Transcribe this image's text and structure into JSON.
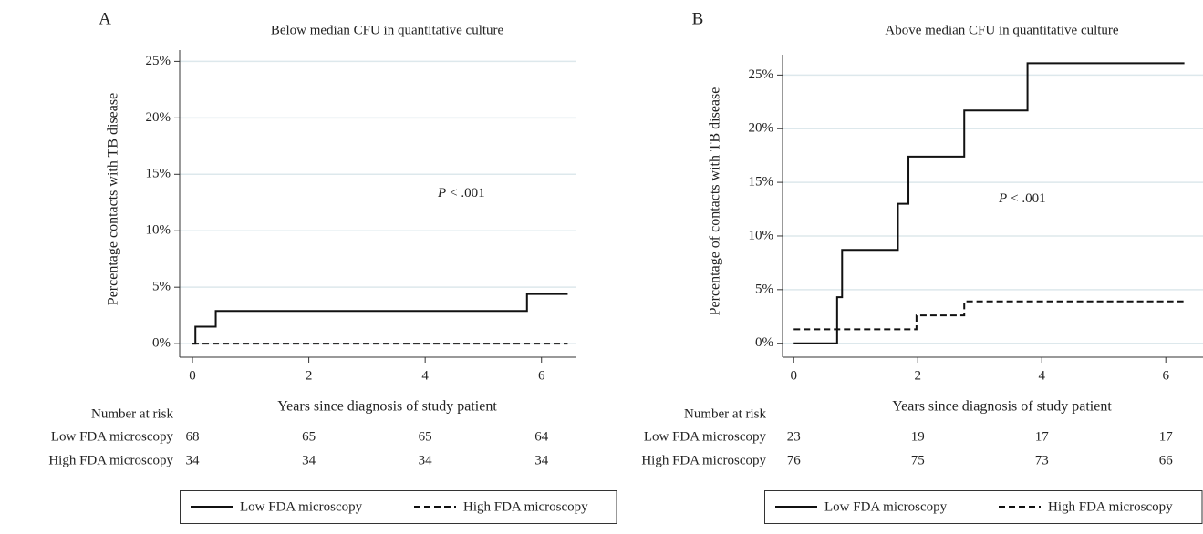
{
  "chart_data": [
    {
      "type": "line",
      "step": "post",
      "panel": "A",
      "title": "Below median CFU in quantitative culture",
      "xlabel": "Years since diagnosis of study patient",
      "ylabel": "Percentage contacts with TB disease",
      "annotation": {
        "italic": "P",
        "text": "< .001"
      },
      "xlim": [
        -0.22,
        6.6
      ],
      "ylim": [
        -1.2,
        26
      ],
      "xticks": [
        0,
        2,
        4,
        6
      ],
      "yticks": [
        {
          "value": 0,
          "label": "0%"
        },
        {
          "value": 5,
          "label": "5%"
        },
        {
          "value": 10,
          "label": "10%"
        },
        {
          "value": 15,
          "label": "15%"
        },
        {
          "value": 20,
          "label": "20%"
        },
        {
          "value": 25,
          "label": "25%"
        }
      ],
      "grid": true,
      "series": [
        {
          "name": "Low FDA microscopy",
          "color": "#111111",
          "linestyle": "solid",
          "x": [
            0,
            0.05,
            0.4,
            5.75,
            6.45
          ],
          "values": [
            0,
            1.5,
            2.9,
            4.4,
            4.4
          ]
        },
        {
          "name": "High FDA microscopy",
          "color": "#111111",
          "linestyle": "dashed",
          "x": [
            0,
            6.45
          ],
          "values": [
            0,
            0
          ]
        }
      ],
      "risk_table": {
        "title": "Number at risk",
        "rows": [
          {
            "name": "Low FDA microscopy",
            "values": [
              68,
              65,
              65,
              64
            ]
          },
          {
            "name": "High FDA microscopy",
            "values": [
              34,
              34,
              34,
              34
            ]
          }
        ]
      }
    },
    {
      "type": "line",
      "step": "post",
      "panel": "B",
      "title": "Above median CFU in quantitative culture",
      "xlabel": "Years since diagnosis of study patient",
      "ylabel": "Percentage of contacts with TB disease",
      "annotation": {
        "italic": "P",
        "text": "< .001"
      },
      "xlim": [
        -0.18,
        6.6
      ],
      "ylim": [
        -1.3,
        26.9
      ],
      "xticks": [
        0,
        2,
        4,
        6
      ],
      "yticks": [
        {
          "value": 0,
          "label": "0%"
        },
        {
          "value": 5,
          "label": "5%"
        },
        {
          "value": 10,
          "label": "10%"
        },
        {
          "value": 15,
          "label": "15%"
        },
        {
          "value": 20,
          "label": "20%"
        },
        {
          "value": 25,
          "label": "25%"
        }
      ],
      "grid": true,
      "series": [
        {
          "name": "Low FDA microscopy",
          "color": "#111111",
          "linestyle": "solid",
          "x": [
            0,
            0.7,
            0.78,
            1.68,
            1.85,
            2.75,
            3.77,
            6.3
          ],
          "values": [
            0,
            4.3,
            8.7,
            13,
            17.4,
            21.7,
            26.1,
            26.1
          ]
        },
        {
          "name": "High FDA microscopy",
          "color": "#111111",
          "linestyle": "dashed",
          "x": [
            0,
            1.98,
            2.75,
            6.3
          ],
          "values": [
            1.3,
            2.6,
            3.9,
            3.9
          ]
        }
      ],
      "risk_table": {
        "title": "Number at risk",
        "rows": [
          {
            "name": "Low FDA microscopy",
            "values": [
              23,
              19,
              17,
              17
            ]
          },
          {
            "name": "High FDA microscopy",
            "values": [
              76,
              75,
              73,
              66
            ]
          }
        ]
      }
    }
  ]
}
